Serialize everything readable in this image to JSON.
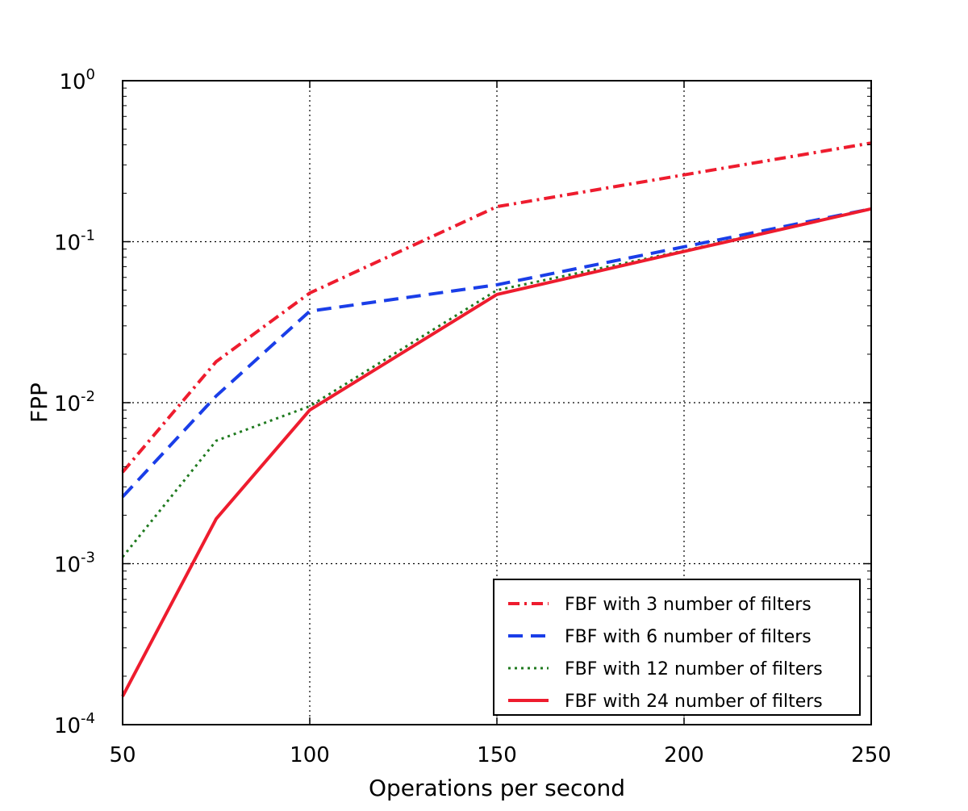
{
  "chart_data": {
    "type": "line",
    "xlabel": "Operations per second",
    "ylabel": "FPP",
    "xlim": [
      50,
      250
    ],
    "ylim": [
      0.0001,
      1
    ],
    "y_scale": "log",
    "grid": true,
    "legend_position": "lower-right",
    "x_ticks": [
      "50",
      "100",
      "150",
      "200",
      "250"
    ],
    "y_ticks": [
      {
        "base": "10",
        "exp": "-4"
      },
      {
        "base": "10",
        "exp": "-3"
      },
      {
        "base": "10",
        "exp": "-2"
      },
      {
        "base": "10",
        "exp": "-1"
      },
      {
        "base": "10",
        "exp": "0"
      }
    ],
    "x": [
      50,
      75,
      100,
      150,
      200,
      250
    ],
    "series": [
      {
        "name": "FBF with 3 number of filters",
        "color": "#ee1c2e",
        "style": "dashdot",
        "values": [
          0.0037,
          0.018,
          0.048,
          0.165,
          0.26,
          0.41
        ]
      },
      {
        "name": "FBF with 6 number of filters",
        "color": "#1a3ee8",
        "style": "dashed",
        "values": [
          0.0026,
          0.011,
          0.037,
          0.054,
          0.093,
          0.16
        ]
      },
      {
        "name": "FBF with 12 number of filters",
        "color": "#1f7a1f",
        "style": "dotted",
        "values": [
          0.0011,
          0.0058,
          0.0095,
          0.05,
          0.088,
          0.16
        ]
      },
      {
        "name": "FBF with 24 number of filters",
        "color": "#ee1c2e",
        "style": "solid",
        "values": [
          0.00015,
          0.0019,
          0.009,
          0.047,
          0.087,
          0.16
        ]
      }
    ]
  }
}
